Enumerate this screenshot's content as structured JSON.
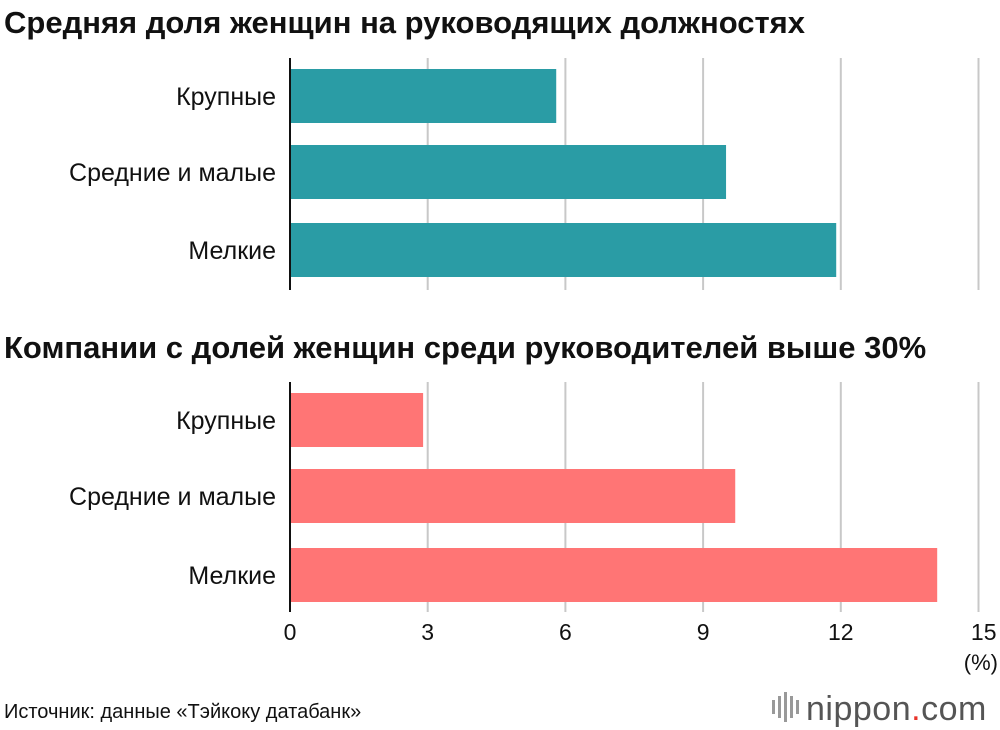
{
  "chart_data": [
    {
      "type": "bar",
      "orientation": "horizontal",
      "title": "Средняя доля женщин на руководящих должностях",
      "categories": [
        "Крупные",
        "Средние и малые",
        "Мелкие"
      ],
      "values": [
        5.8,
        9.5,
        11.9
      ],
      "color": "#2a9ca5",
      "xlim": [
        0,
        15
      ],
      "grid": true
    },
    {
      "type": "bar",
      "orientation": "horizontal",
      "title": "Компании с долей женщин среди руководителей выше 30%",
      "categories": [
        "Крупные",
        "Средние и малые",
        "Мелкие"
      ],
      "values": [
        2.9,
        9.7,
        14.1
      ],
      "color": "#ff7575",
      "xlim": [
        0,
        15
      ],
      "grid": true,
      "xticks": [
        "0",
        "3",
        "6",
        "9",
        "12",
        "15"
      ],
      "xlabel": "(%)"
    }
  ],
  "source": "Источник: данные «Тэйкоку датабанк»",
  "logo": {
    "main": "nippon",
    "dot": ".",
    "tld": "com"
  }
}
